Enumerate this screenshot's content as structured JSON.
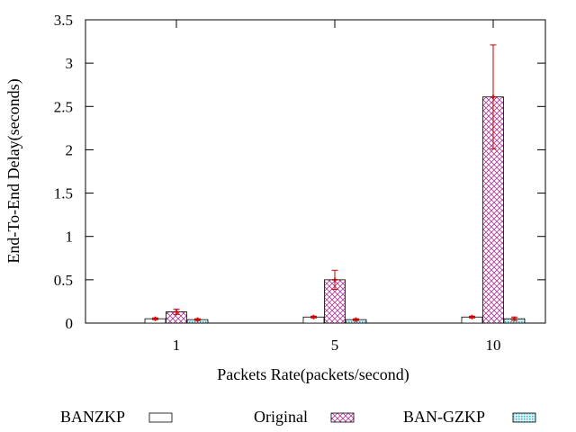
{
  "chart_data": {
    "type": "bar",
    "title": "",
    "xlabel": "Packets Rate(packets/second)",
    "ylabel": "End-To-End Delay(seconds)",
    "categories": [
      "1",
      "5",
      "10"
    ],
    "ylim": [
      0,
      3.5
    ],
    "yticks": [
      "0",
      "0.5",
      "1",
      "1.5",
      "2",
      "2.5",
      "3",
      "3.5"
    ],
    "grid": false,
    "legend_position": "bottom",
    "error_bar_color": "#cc0000",
    "series": [
      {
        "name": "BANZKP",
        "values": [
          0.05,
          0.07,
          0.07
        ],
        "errors": [
          0.01,
          0.01,
          0.01
        ],
        "fill": "plain-white"
      },
      {
        "name": "Original",
        "values": [
          0.13,
          0.5,
          2.61
        ],
        "errors": [
          0.03,
          0.11,
          0.6
        ],
        "fill": "crosshatch-magenta",
        "color": "#b0409a"
      },
      {
        "name": "BAN-GZKP",
        "values": [
          0.04,
          0.04,
          0.05
        ],
        "errors": [
          0.01,
          0.01,
          0.02
        ],
        "fill": "dotted-cyan",
        "color": "#4fc0c8"
      }
    ]
  }
}
